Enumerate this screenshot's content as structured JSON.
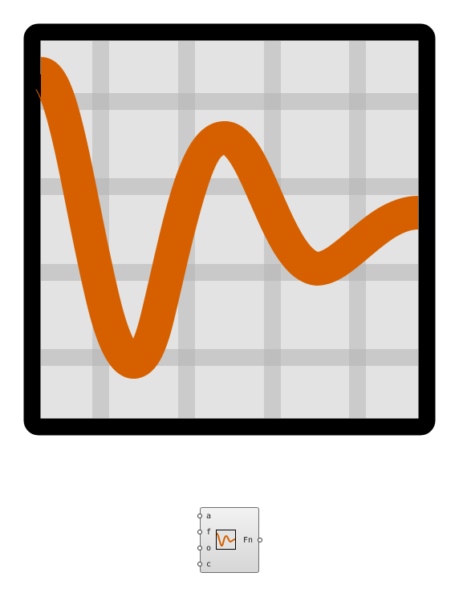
{
  "icon": {
    "name": "oscillating-function-graph-icon",
    "frame_color": "#000000",
    "grid_color": "#cbcbcb",
    "background_color": "#e3e3e3",
    "curve_color": "#d66000"
  },
  "component": {
    "inputs": [
      {
        "label": "a"
      },
      {
        "label": "f"
      },
      {
        "label": "o"
      },
      {
        "label": "c"
      }
    ],
    "output": {
      "label": "Fn"
    },
    "icon_name": "damped-wave-icon"
  }
}
